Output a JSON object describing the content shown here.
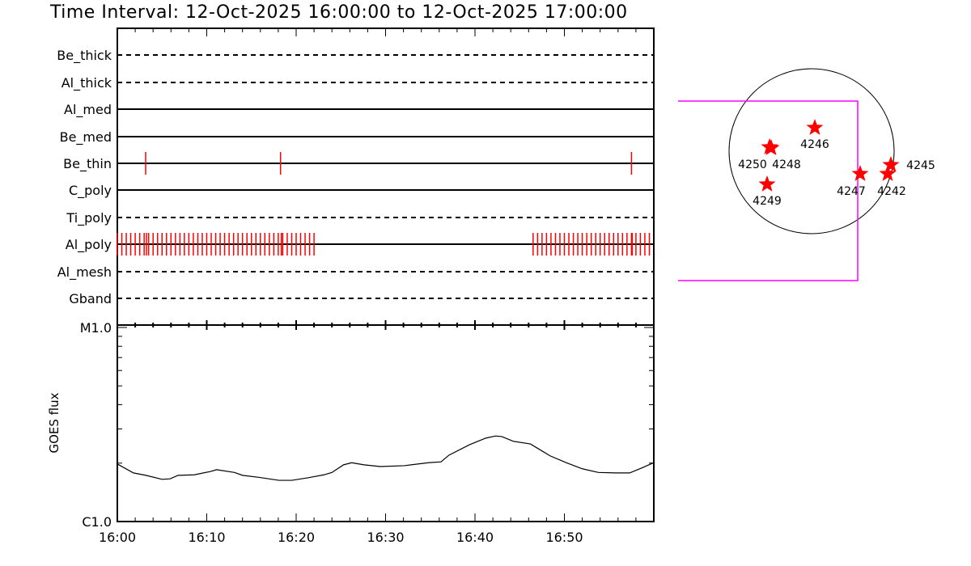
{
  "title": "Time Interval: 12-Oct-2025 16:00:00 to 12-Oct-2025 17:00:00",
  "colors": {
    "exposure": "#ff0000",
    "fov": "#ff00ff",
    "line": "#000000",
    "star": "#ff0000"
  },
  "chart_data": [
    {
      "type": "timeline",
      "xrange": [
        "16:00:00",
        "17:00:00"
      ],
      "rows": [
        {
          "name": "Be_thick",
          "style": "dashed",
          "exposures": []
        },
        {
          "name": "Al_thick",
          "style": "dashed",
          "exposures": []
        },
        {
          "name": "Al_med",
          "style": "solid",
          "exposures": []
        },
        {
          "name": "Be_med",
          "style": "solid",
          "exposures": []
        },
        {
          "name": "Be_thin",
          "style": "solid",
          "exposures": [
            "16:03:10",
            "16:18:15",
            "16:57:30"
          ]
        },
        {
          "name": "C_poly",
          "style": "solid",
          "exposures": []
        },
        {
          "name": "Ti_poly",
          "style": "dashed",
          "exposures": []
        },
        {
          "name": "Al_poly",
          "style": "solid",
          "exposures": [],
          "exposure_runs": [
            {
              "start": "16:00:00",
              "end": "16:22:00",
              "cadence_s": 30
            },
            {
              "start": "16:46:30",
              "end": "16:59:30",
              "cadence_s": 30
            }
          ],
          "extra_exposures": [
            "16:03:10",
            "16:18:15",
            "16:57:30"
          ]
        },
        {
          "name": "Al_mesh",
          "style": "dashed",
          "exposures": []
        },
        {
          "name": "Gband",
          "style": "dashed",
          "exposures": []
        }
      ]
    },
    {
      "type": "line",
      "ylabel": "GOES flux",
      "yscale": "log",
      "ylim": [
        1e-06,
        1e-05
      ],
      "ytick_labels": [
        "C1.0",
        "M1.0"
      ],
      "xtick_labels": [
        "16:00",
        "16:10",
        "16:20",
        "16:30",
        "16:40",
        "16:50"
      ],
      "x": [
        "16:00:00",
        "16:01:48",
        "16:03:12",
        "16:05:00",
        "16:05:54",
        "16:06:48",
        "16:08:36",
        "16:10:24",
        "16:11:06",
        "16:13:06",
        "16:14:00",
        "16:15:48",
        "16:18:06",
        "16:19:30",
        "16:21:18",
        "16:23:06",
        "16:24:00",
        "16:25:18",
        "16:26:12",
        "16:27:36",
        "16:29:24",
        "16:32:06",
        "16:34:48",
        "16:36:12",
        "16:37:06",
        "16:39:24",
        "16:41:12",
        "16:42:18",
        "16:43:00",
        "16:44:18",
        "16:46:12",
        "16:47:06",
        "16:48:24",
        "16:50:12",
        "16:52:00",
        "16:53:48",
        "16:55:42",
        "16:57:18",
        "16:58:48",
        "17:00:00"
      ],
      "y": [
        1.98e-06,
        1.78e-06,
        1.73e-06,
        1.65e-06,
        1.66e-06,
        1.73e-06,
        1.74e-06,
        1.81e-06,
        1.85e-06,
        1.79e-06,
        1.73e-06,
        1.69e-06,
        1.63e-06,
        1.63e-06,
        1.68e-06,
        1.74e-06,
        1.79e-06,
        1.96e-06,
        2.01e-06,
        1.96e-06,
        1.92e-06,
        1.94e-06,
        2.01e-06,
        2.03e-06,
        2.2e-06,
        2.49e-06,
        2.69e-06,
        2.76e-06,
        2.74e-06,
        2.59e-06,
        2.51e-06,
        2.37e-06,
        2.18e-06,
        2.01e-06,
        1.87e-06,
        1.79e-06,
        1.78e-06,
        1.78e-06,
        1.9e-06,
        2.01e-06
      ]
    }
  ],
  "sun_map": {
    "active_regions": [
      "4250",
      "4248",
      "4246",
      "4249",
      "4247",
      "4245",
      "4242"
    ]
  }
}
